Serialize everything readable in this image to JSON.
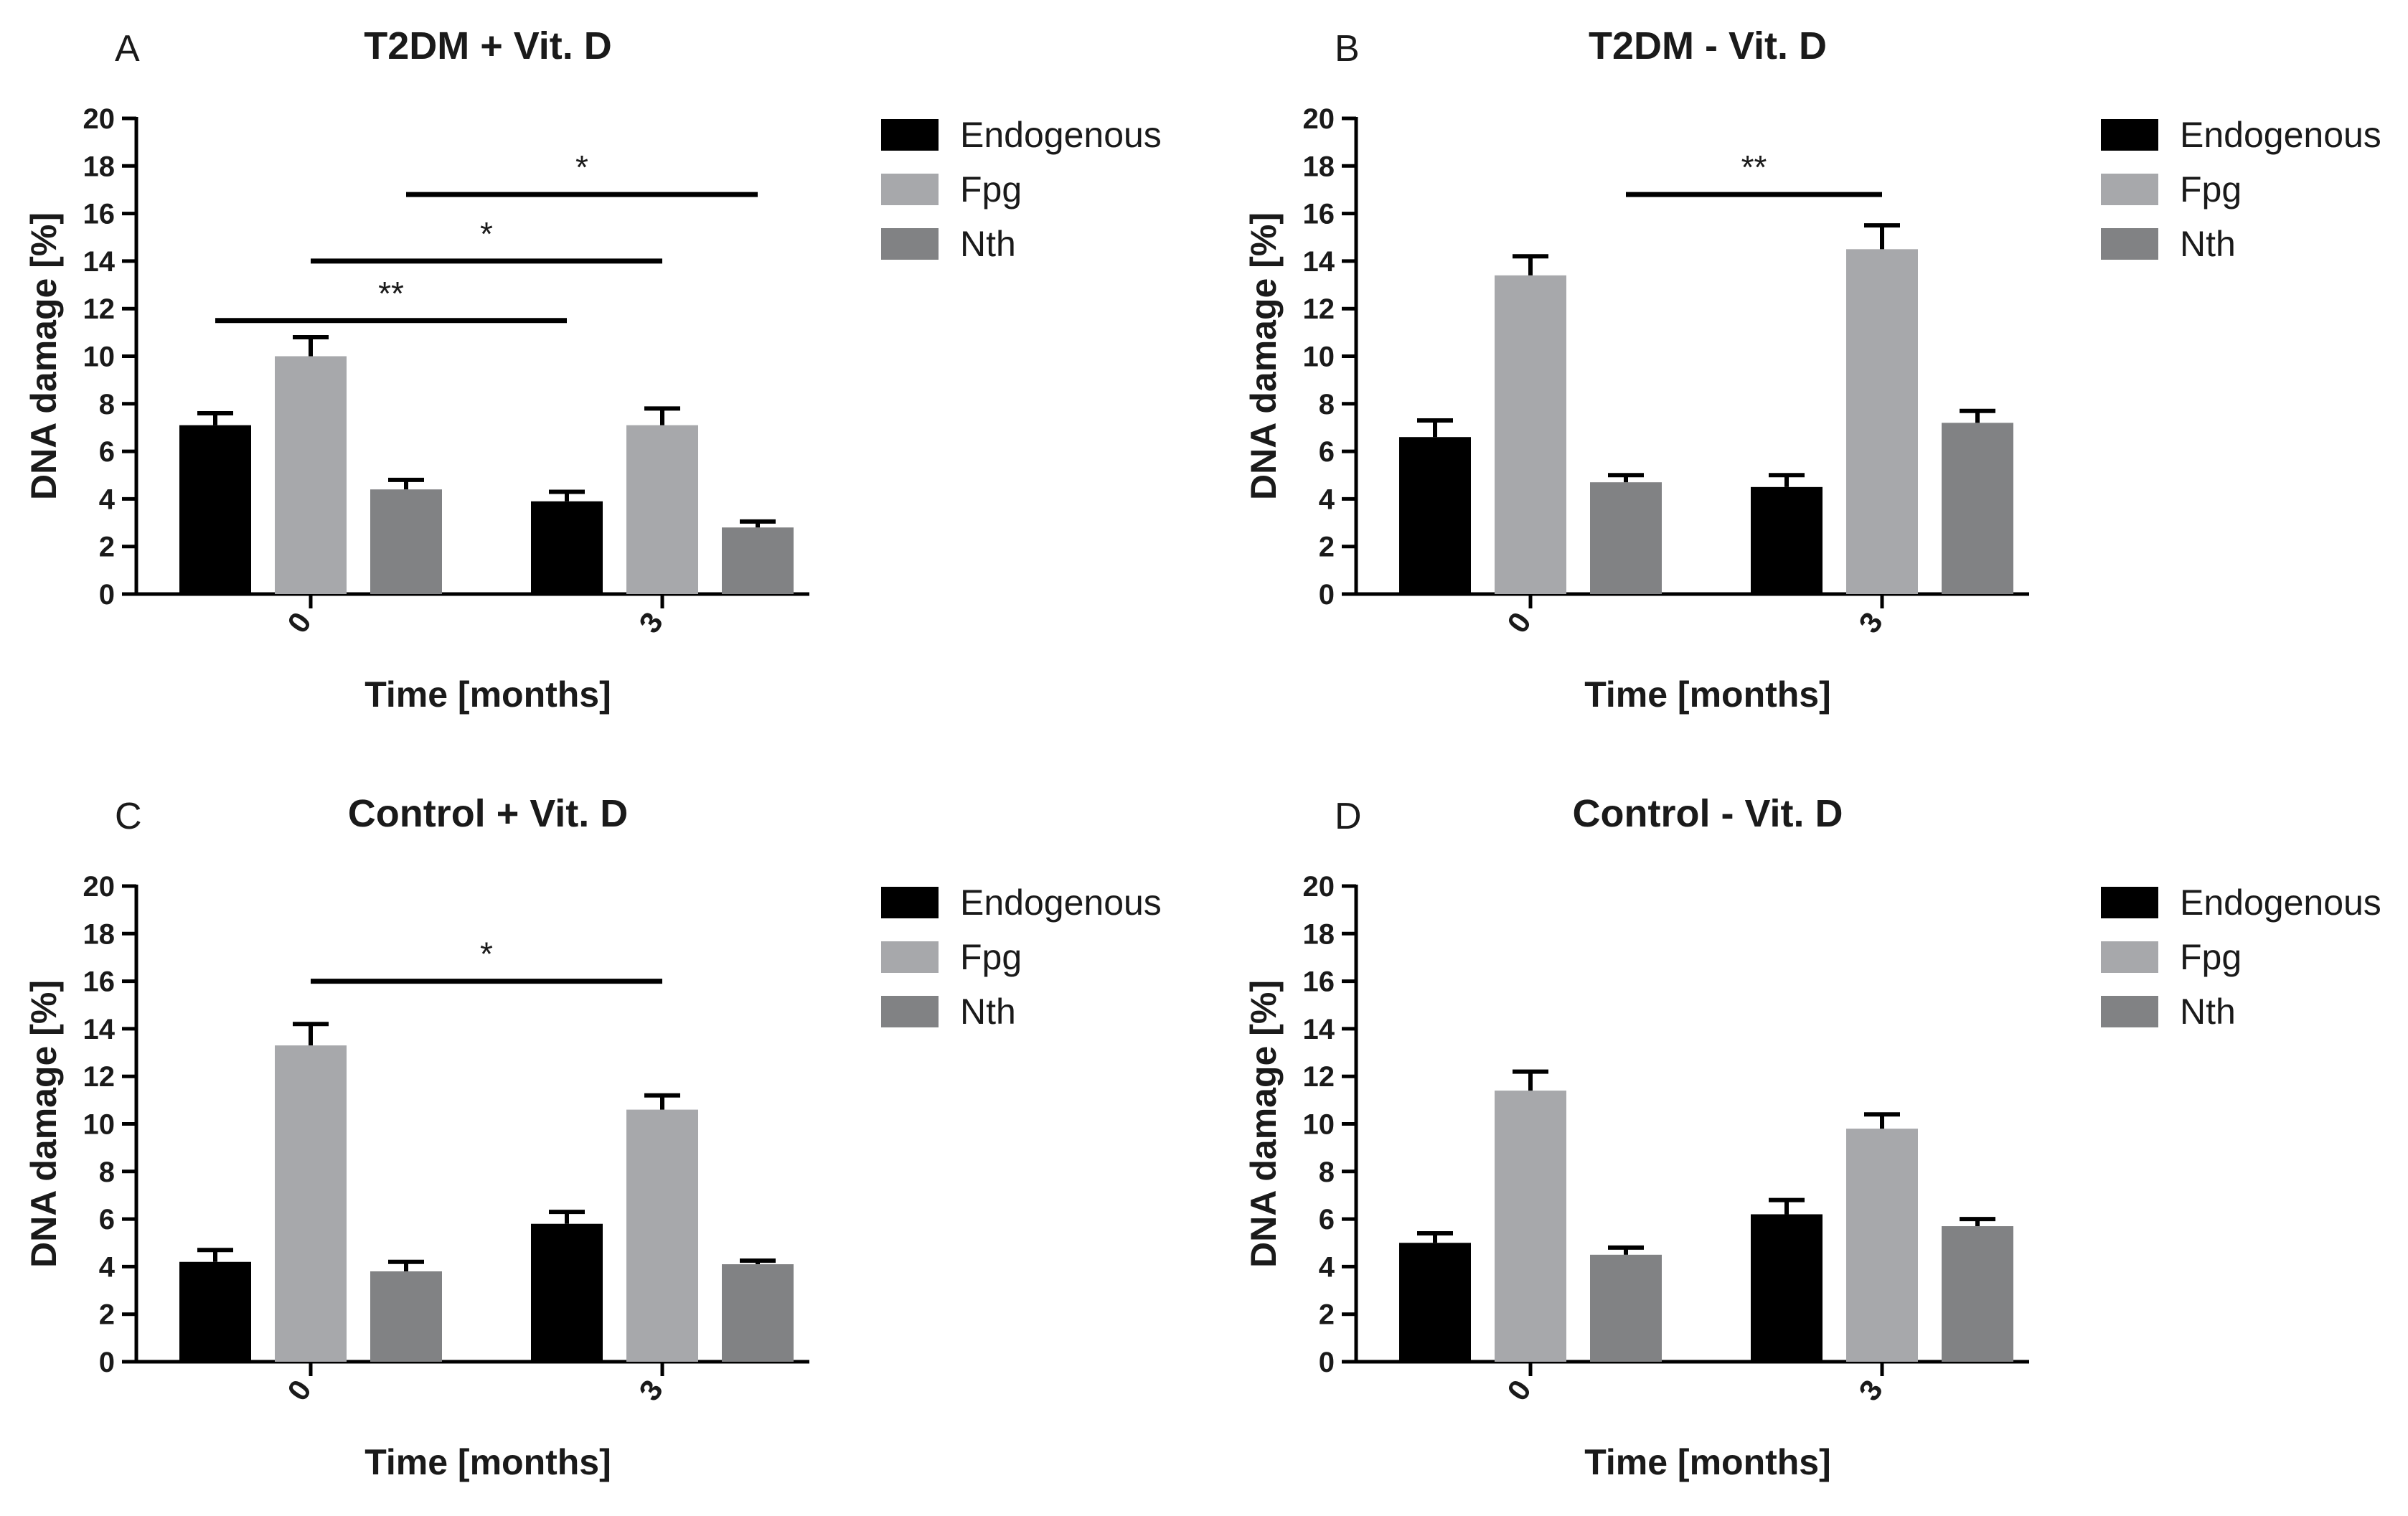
{
  "chart_data": [
    {
      "type": "bar",
      "panel_label": "A",
      "title": "T2DM + Vit. D",
      "xlabel": "Time [months]",
      "ylabel": "DNA damage [%]",
      "ylim": [
        0,
        20
      ],
      "yticks": [
        0,
        2,
        4,
        6,
        8,
        10,
        12,
        14,
        16,
        18,
        20
      ],
      "categories": [
        "0",
        "3"
      ],
      "legend_position": "right",
      "grid": false,
      "series": [
        {
          "name": "Endogenous",
          "color": "#000000",
          "values": [
            7.1,
            3.9
          ],
          "errors": [
            0.5,
            0.4
          ]
        },
        {
          "name": "Fpg",
          "color": "#a7a8ab",
          "values": [
            10.0,
            7.1
          ],
          "errors": [
            0.8,
            0.7
          ]
        },
        {
          "name": "Nth",
          "color": "#818284",
          "values": [
            4.4,
            2.8
          ],
          "errors": [
            0.4,
            0.25
          ]
        }
      ],
      "significance": [
        {
          "from": [
            0,
            0
          ],
          "to": [
            1,
            0
          ],
          "y": 11.5,
          "label": "**"
        },
        {
          "from": [
            0,
            1
          ],
          "to": [
            1,
            1
          ],
          "y": 14.0,
          "label": "*"
        },
        {
          "from": [
            0,
            2
          ],
          "to": [
            1,
            2
          ],
          "y": 16.8,
          "label": "*"
        }
      ]
    },
    {
      "type": "bar",
      "panel_label": "B",
      "title": "T2DM - Vit. D",
      "xlabel": "Time [months]",
      "ylabel": "DNA damage [%]",
      "ylim": [
        0,
        20
      ],
      "yticks": [
        0,
        2,
        4,
        6,
        8,
        10,
        12,
        14,
        16,
        18,
        20
      ],
      "categories": [
        "0",
        "3"
      ],
      "legend_position": "right",
      "grid": false,
      "series": [
        {
          "name": "Endogenous",
          "color": "#000000",
          "values": [
            6.6,
            4.5
          ],
          "errors": [
            0.7,
            0.5
          ]
        },
        {
          "name": "Fpg",
          "color": "#a7a8ab",
          "values": [
            13.4,
            14.5
          ],
          "errors": [
            0.8,
            1.0
          ]
        },
        {
          "name": "Nth",
          "color": "#818284",
          "values": [
            4.7,
            7.2
          ],
          "errors": [
            0.3,
            0.5
          ]
        }
      ],
      "significance": [
        {
          "from": [
            0,
            2
          ],
          "to": [
            1,
            1
          ],
          "y": 16.8,
          "label": "**"
        }
      ]
    },
    {
      "type": "bar",
      "panel_label": "C",
      "title": "Control + Vit. D",
      "xlabel": "Time [months]",
      "ylabel": "DNA damage [%]",
      "ylim": [
        0,
        20
      ],
      "yticks": [
        0,
        2,
        4,
        6,
        8,
        10,
        12,
        14,
        16,
        18,
        20
      ],
      "categories": [
        "0",
        "3"
      ],
      "legend_position": "right",
      "grid": false,
      "series": [
        {
          "name": "Endogenous",
          "color": "#000000",
          "values": [
            4.2,
            5.8
          ],
          "errors": [
            0.5,
            0.5
          ]
        },
        {
          "name": "Fpg",
          "color": "#a7a8ab",
          "values": [
            13.3,
            10.6
          ],
          "errors": [
            0.9,
            0.6
          ]
        },
        {
          "name": "Nth",
          "color": "#818284",
          "values": [
            3.8,
            4.1
          ],
          "errors": [
            0.4,
            0.15
          ]
        }
      ],
      "significance": [
        {
          "from": [
            0,
            1
          ],
          "to": [
            1,
            1
          ],
          "y": 16.0,
          "label": "*"
        }
      ]
    },
    {
      "type": "bar",
      "panel_label": "D",
      "title": "Control - Vit. D",
      "xlabel": "Time [months]",
      "ylabel": "DNA damage [%]",
      "ylim": [
        0,
        20
      ],
      "yticks": [
        0,
        2,
        4,
        6,
        8,
        10,
        12,
        14,
        16,
        18,
        20
      ],
      "categories": [
        "0",
        "3"
      ],
      "legend_position": "right",
      "grid": false,
      "series": [
        {
          "name": "Endogenous",
          "color": "#000000",
          "values": [
            5.0,
            6.2
          ],
          "errors": [
            0.4,
            0.6
          ]
        },
        {
          "name": "Fpg",
          "color": "#a7a8ab",
          "values": [
            11.4,
            9.8
          ],
          "errors": [
            0.8,
            0.6
          ]
        },
        {
          "name": "Nth",
          "color": "#818284",
          "values": [
            4.5,
            5.7
          ],
          "errors": [
            0.3,
            0.3
          ]
        }
      ],
      "significance": []
    }
  ]
}
